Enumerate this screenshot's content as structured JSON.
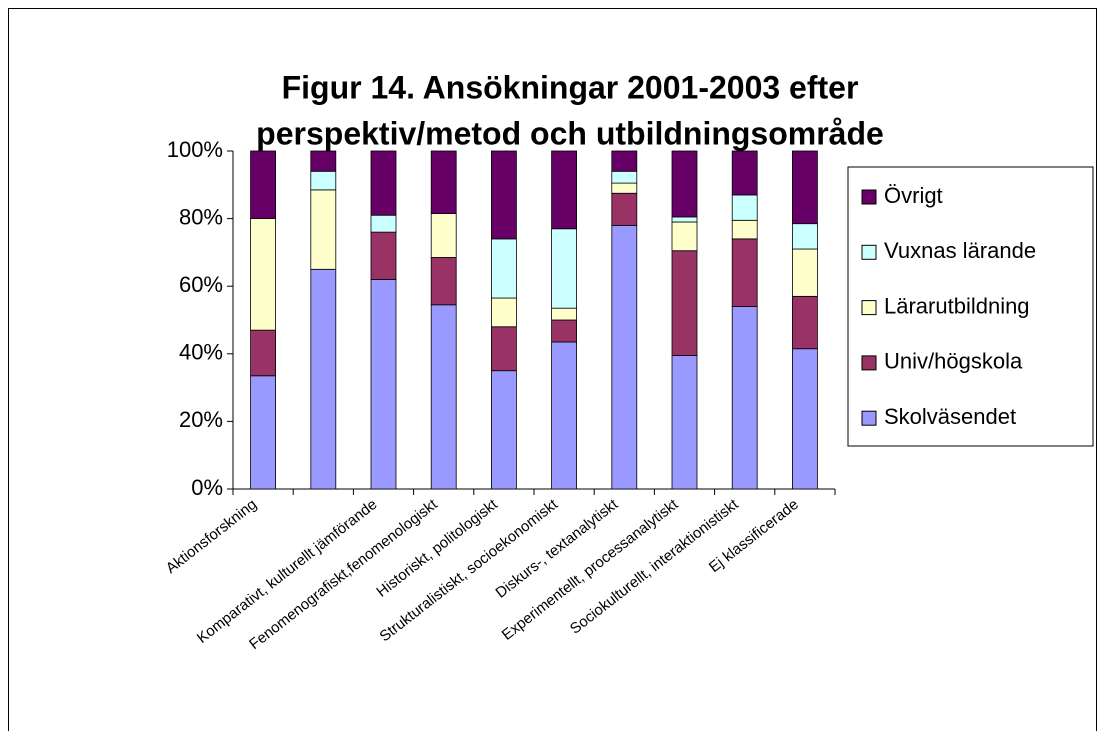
{
  "chart_data": {
    "type": "bar",
    "stacked": true,
    "title": [
      "Figur 14. Ansökningar 2001-2003 efter",
      "perspektiv/metod och utbildningsområde"
    ],
    "categories": [
      "Aktionsforskning",
      null,
      "Komparativt, kulturellt jämförande",
      "Fenomenografiskt,fenomenologiskt",
      "Historiskt, politologiskt",
      "Strukturalistiskt, socioekonomiskt",
      "Diskurs-, textanalytiskt",
      "Experimentellt, processanalytiskt",
      "Sociokulturellt, interaktionistiskt",
      "Ej klassificerade"
    ],
    "series": [
      {
        "name": "Skolväsendet",
        "color": "#9999ff",
        "values": [
          33.5,
          65,
          62,
          54.5,
          35,
          43.5,
          78,
          39.5,
          54,
          41.5
        ]
      },
      {
        "name": "Univ/högskola",
        "color": "#993366",
        "values": [
          13.5,
          0,
          14,
          14,
          13,
          6.5,
          9.5,
          31,
          20,
          15.5
        ]
      },
      {
        "name": "Lärarutbildning",
        "color": "#ffffcc",
        "values": [
          33,
          23.5,
          0,
          13,
          8.5,
          3.5,
          3,
          8.5,
          5.5,
          14
        ]
      },
      {
        "name": "Vuxnas lärande",
        "color": "#ccffff",
        "values": [
          0,
          5.5,
          5,
          0,
          17.5,
          23.5,
          3.5,
          1.5,
          7.5,
          7.5
        ]
      },
      {
        "name": "Övrigt",
        "color": "#660066",
        "values": [
          20,
          6,
          19,
          18.5,
          26,
          23,
          6,
          19.5,
          13,
          21.5
        ]
      }
    ],
    "ylim": [
      0,
      100
    ],
    "yticks": [
      {
        "value": 0,
        "label": "0%"
      },
      {
        "value": 20,
        "label": "20%"
      },
      {
        "value": 40,
        "label": "40%"
      },
      {
        "value": 60,
        "label": "60%"
      },
      {
        "value": 80,
        "label": "80%"
      },
      {
        "value": 100,
        "label": "100%"
      }
    ],
    "legend": "right"
  }
}
